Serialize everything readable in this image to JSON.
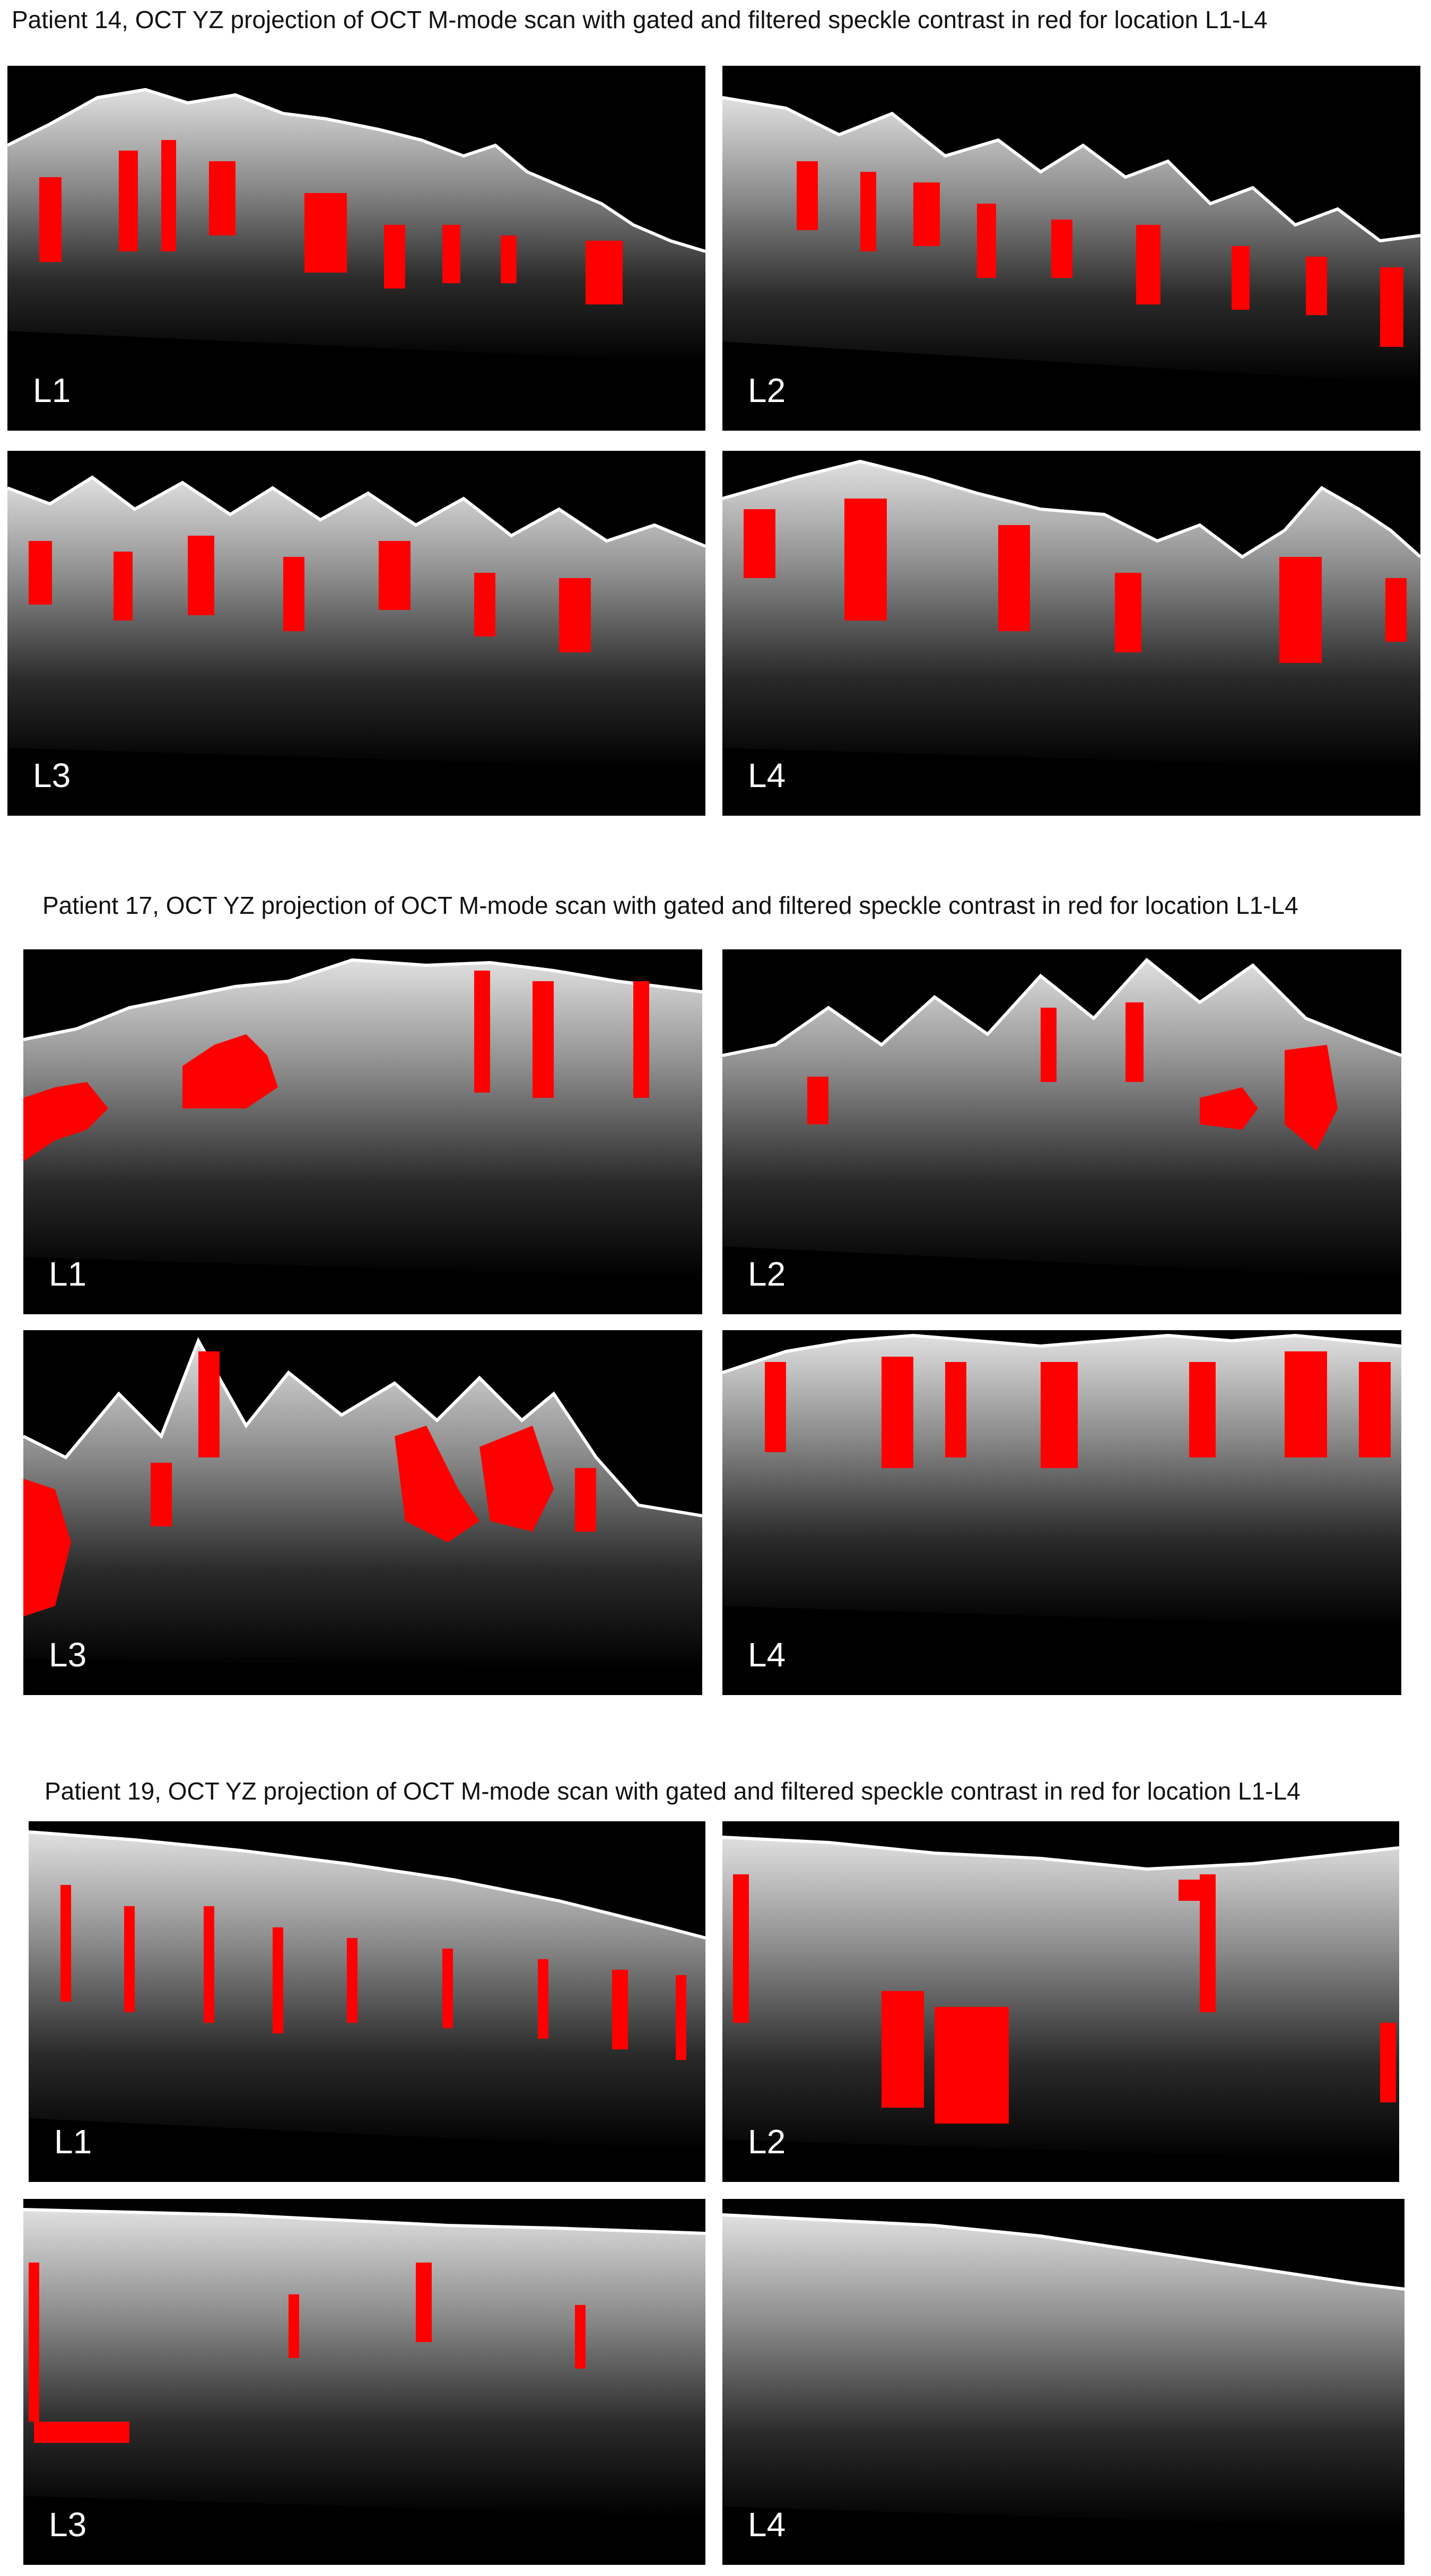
{
  "figure": {
    "colors": {
      "background": "#ffffff",
      "panel": "#000000",
      "tissue": "#c8c8c8",
      "speckle": "#ff0000",
      "label": "#ffffff"
    },
    "groups": [
      {
        "caption": "Patient 14, OCT YZ projection of OCT M-mode scan with gated and filtered speckle contrast in red for location L1-L4",
        "panels": [
          {
            "label": "L1"
          },
          {
            "label": "L2"
          },
          {
            "label": "L3"
          },
          {
            "label": "L4"
          }
        ]
      },
      {
        "caption": "Patient 17, OCT YZ projection of OCT M-mode scan with gated and filtered speckle contrast in red for location L1-L4",
        "panels": [
          {
            "label": "L1"
          },
          {
            "label": "L2"
          },
          {
            "label": "L3"
          },
          {
            "label": "L4"
          }
        ]
      },
      {
        "caption": "Patient 19, OCT YZ projection of OCT M-mode scan with gated and filtered speckle contrast in red for location L1-L4",
        "panels": [
          {
            "label": "L1"
          },
          {
            "label": "L2"
          },
          {
            "label": "L3"
          },
          {
            "label": "L4"
          }
        ]
      }
    ]
  }
}
